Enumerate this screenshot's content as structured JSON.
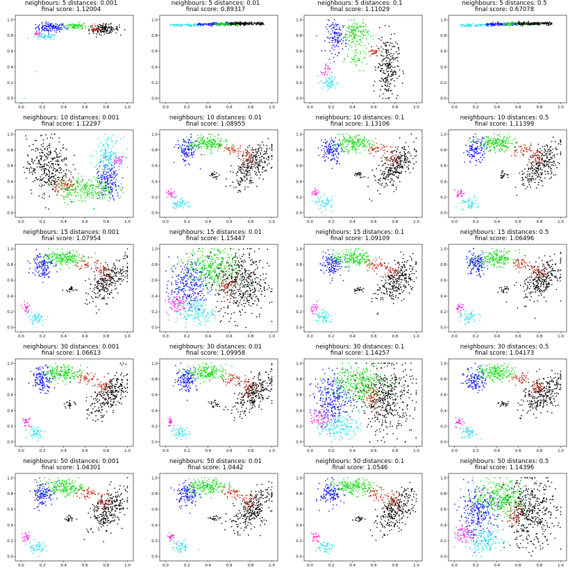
{
  "figure": {
    "title_template_neighbours": "neighbours:",
    "title_template_distances": "distances:",
    "title_template_score": "final score:"
  },
  "colors": {
    "blue": "#1a1aff",
    "green": "#22dd22",
    "black": "#111111",
    "cyan": "#33e0f0",
    "magenta": "#ff33dd",
    "red": "#cc3322",
    "gray": "#888888",
    "yellow": "#dddd22"
  },
  "chart_data": [
    {
      "type": "scatter",
      "title": "neighbours: 5 distances: 0.001",
      "subtitle": "final score: 1.12004",
      "neighbours": 5,
      "distances": 0.001,
      "score": 1.12004,
      "xlim": [
        0,
        1
      ],
      "ylim": [
        0,
        1
      ],
      "xticks": [
        "0.0",
        "0.2",
        "0.4",
        "0.6",
        "0.8",
        "1.0"
      ],
      "yticks": [
        "0.0",
        "0.2",
        "0.4",
        "0.6",
        "0.8",
        "1.0"
      ],
      "layout": "flat-top"
    },
    {
      "type": "scatter",
      "title": "neighbours: 5 distances: 0.01",
      "subtitle": "final score: 0.89317",
      "neighbours": 5,
      "distances": 0.01,
      "score": 0.89317,
      "xlim": [
        0,
        1
      ],
      "ylim": [
        0,
        1
      ],
      "xticks": [
        "0.0",
        "0.2",
        "0.4",
        "0.6",
        "0.8",
        "1.0"
      ],
      "yticks": [
        "0.0",
        "0.2",
        "0.4",
        "0.6",
        "0.8",
        "1.0"
      ],
      "layout": "line"
    },
    {
      "type": "scatter",
      "title": "neighbours: 5 distances: 0.1",
      "subtitle": "final score: 1.11029",
      "neighbours": 5,
      "distances": 0.1,
      "score": 1.11029,
      "xlim": [
        0,
        1
      ],
      "ylim": [
        0,
        1
      ],
      "xticks": [
        "0.0",
        "0.2",
        "0.4",
        "0.6",
        "0.8",
        "1.0"
      ],
      "yticks": [
        "0.0",
        "0.2",
        "0.4",
        "0.6",
        "0.8",
        "1.0"
      ],
      "layout": "scattered"
    },
    {
      "type": "scatter",
      "title": "neighbours: 5 distances: 0.5",
      "subtitle": "final score: 0.67078",
      "neighbours": 5,
      "distances": 0.5,
      "score": 0.67078,
      "xlim": [
        0,
        1
      ],
      "ylim": [
        0,
        1
      ],
      "xticks": [
        "0.0",
        "0.2",
        "0.4",
        "0.6",
        "0.8",
        "1.0"
      ],
      "yticks": [
        "0.0",
        "0.2",
        "0.4",
        "0.6",
        "0.8",
        "1.0"
      ],
      "layout": "line"
    },
    {
      "type": "scatter",
      "title": "neighbours: 10 distances: 0.001",
      "subtitle": "final score: 1.12297",
      "neighbours": 10,
      "distances": 0.001,
      "score": 1.12297,
      "xlim": [
        0,
        1
      ],
      "ylim": [
        0,
        1
      ],
      "xticks": [
        "0.0",
        "0.2",
        "0.4",
        "0.6",
        "0.8",
        "1.0"
      ],
      "yticks": [
        "0.0",
        "0.2",
        "0.4",
        "0.6",
        "0.8",
        "1.0"
      ],
      "layout": "ring"
    },
    {
      "type": "scatter",
      "title": "neighbours: 10 distances: 0.01",
      "subtitle": "final score: 1.08955",
      "neighbours": 10,
      "distances": 0.01,
      "score": 1.08955,
      "xlim": [
        0,
        1
      ],
      "ylim": [
        0,
        1
      ],
      "xticks": [
        "0.0",
        "0.2",
        "0.4",
        "0.6",
        "0.8",
        "1.0"
      ],
      "yticks": [
        "0.0",
        "0.2",
        "0.4",
        "0.6",
        "0.8",
        "1.0"
      ],
      "layout": "arc"
    },
    {
      "type": "scatter",
      "title": "neighbours: 10 distances: 0.1",
      "subtitle": "final score: 1.13106",
      "neighbours": 10,
      "distances": 0.1,
      "score": 1.13106,
      "xlim": [
        0,
        1
      ],
      "ylim": [
        0,
        1
      ],
      "xticks": [
        "0.0",
        "0.2",
        "0.4",
        "0.6",
        "0.8",
        "1.0"
      ],
      "yticks": [
        "0.0",
        "0.2",
        "0.4",
        "0.6",
        "0.8",
        "1.0"
      ],
      "layout": "arc"
    },
    {
      "type": "scatter",
      "title": "neighbours: 10 distances: 0.5",
      "subtitle": "final score: 1.11399",
      "neighbours": 10,
      "distances": 0.5,
      "score": 1.11399,
      "xlim": [
        0,
        1
      ],
      "ylim": [
        0,
        1
      ],
      "xticks": [
        "0.0",
        "0.2",
        "0.4",
        "0.6",
        "0.8",
        "1.0"
      ],
      "yticks": [
        "0.0",
        "0.2",
        "0.4",
        "0.6",
        "0.8",
        "1.0"
      ],
      "layout": "arc"
    },
    {
      "type": "scatter",
      "title": "neighbours: 15 distances: 0.001",
      "subtitle": "final score: 1.07954",
      "neighbours": 15,
      "distances": 0.001,
      "score": 1.07954,
      "xlim": [
        0,
        1
      ],
      "ylim": [
        0,
        1
      ],
      "xticks": [
        "0.0",
        "0.2",
        "0.4",
        "0.6",
        "0.8",
        "1.0"
      ],
      "yticks": [
        "0.0",
        "0.2",
        "0.4",
        "0.6",
        "0.8",
        "1.0"
      ],
      "layout": "arc"
    },
    {
      "type": "scatter",
      "title": "neighbours: 15 distances: 0.01",
      "subtitle": "final score: 1.15447",
      "neighbours": 15,
      "distances": 0.01,
      "score": 1.15447,
      "xlim": [
        0,
        1
      ],
      "ylim": [
        0,
        1
      ],
      "xticks": [
        "0.0",
        "0.2",
        "0.4",
        "0.6",
        "0.8",
        "1.0"
      ],
      "yticks": [
        "0.0",
        "0.2",
        "0.4",
        "0.6",
        "0.8",
        "1.0"
      ],
      "layout": "blob"
    },
    {
      "type": "scatter",
      "title": "neighbours: 15 distances: 0.1",
      "subtitle": "final score: 1.09109",
      "neighbours": 15,
      "distances": 0.1,
      "score": 1.09109,
      "xlim": [
        0,
        1
      ],
      "ylim": [
        0,
        1
      ],
      "xticks": [
        "0.0",
        "0.2",
        "0.4",
        "0.6",
        "0.8",
        "1.0"
      ],
      "yticks": [
        "0.0",
        "0.2",
        "0.4",
        "0.6",
        "0.8",
        "1.0"
      ],
      "layout": "arc"
    },
    {
      "type": "scatter",
      "title": "neighbours: 15 distances: 0.5",
      "subtitle": "final score: 1.06496",
      "neighbours": 15,
      "distances": 0.5,
      "score": 1.06496,
      "xlim": [
        0,
        1
      ],
      "ylim": [
        0,
        1
      ],
      "xticks": [
        "0.0",
        "0.2",
        "0.4",
        "0.6",
        "0.8",
        "1.0"
      ],
      "yticks": [
        "0.0",
        "0.2",
        "0.4",
        "0.6",
        "0.8",
        "1.0"
      ],
      "layout": "arc"
    },
    {
      "type": "scatter",
      "title": "neighbours: 30 distances: 0.001",
      "subtitle": "final score: 1.06613",
      "neighbours": 30,
      "distances": 0.001,
      "score": 1.06613,
      "xlim": [
        0,
        1
      ],
      "ylim": [
        0,
        1
      ],
      "xticks": [
        "0.0",
        "0.2",
        "0.4",
        "0.6",
        "0.8",
        "1.0"
      ],
      "yticks": [
        "0.0",
        "0.2",
        "0.4",
        "0.6",
        "0.8",
        "1.0"
      ],
      "layout": "arc"
    },
    {
      "type": "scatter",
      "title": "neighbours: 30 distances: 0.01",
      "subtitle": "final score: 1.09958",
      "neighbours": 30,
      "distances": 0.01,
      "score": 1.09958,
      "xlim": [
        0,
        1
      ],
      "ylim": [
        0,
        1
      ],
      "xticks": [
        "0.0",
        "0.2",
        "0.4",
        "0.6",
        "0.8",
        "1.0"
      ],
      "yticks": [
        "0.0",
        "0.2",
        "0.4",
        "0.6",
        "0.8",
        "1.0"
      ],
      "layout": "arc"
    },
    {
      "type": "scatter",
      "title": "neighbours: 30 distances: 0.1",
      "subtitle": "final score: 1.14257",
      "neighbours": 30,
      "distances": 0.1,
      "score": 1.14257,
      "xlim": [
        0,
        1
      ],
      "ylim": [
        0,
        1
      ],
      "xticks": [
        "0.0",
        "0.2",
        "0.4",
        "0.6",
        "0.8",
        "1.0"
      ],
      "yticks": [
        "0.0",
        "0.2",
        "0.4",
        "0.6",
        "0.8",
        "1.0"
      ],
      "layout": "blob"
    },
    {
      "type": "scatter",
      "title": "neighbours: 30 distances: 0.5",
      "subtitle": "final score: 1.04173",
      "neighbours": 30,
      "distances": 0.5,
      "score": 1.04173,
      "xlim": [
        0,
        1
      ],
      "ylim": [
        0,
        1
      ],
      "xticks": [
        "0.0",
        "0.2",
        "0.4",
        "0.6",
        "0.8",
        "1.0"
      ],
      "yticks": [
        "0.0",
        "0.2",
        "0.4",
        "0.6",
        "0.8",
        "1.0"
      ],
      "layout": "arc"
    },
    {
      "type": "scatter",
      "title": "neighbours: 50 distances: 0.001",
      "subtitle": "final score: 1.04301",
      "neighbours": 50,
      "distances": 0.001,
      "score": 1.04301,
      "xlim": [
        0,
        1
      ],
      "ylim": [
        0,
        1
      ],
      "xticks": [
        "0.0",
        "0.2",
        "0.4",
        "0.6",
        "0.8",
        "1.0"
      ],
      "yticks": [
        "0.0",
        "0.2",
        "0.4",
        "0.6",
        "0.8",
        "1.0"
      ],
      "layout": "arc"
    },
    {
      "type": "scatter",
      "title": "neighbours: 50 distances: 0.01",
      "subtitle": "final score: 1.0442",
      "neighbours": 50,
      "distances": 0.01,
      "score": 1.0442,
      "xlim": [
        0,
        1
      ],
      "ylim": [
        0,
        1
      ],
      "xticks": [
        "0.0",
        "0.2",
        "0.4",
        "0.6",
        "0.8",
        "1.0"
      ],
      "yticks": [
        "0.0",
        "0.2",
        "0.4",
        "0.6",
        "0.8",
        "1.0"
      ],
      "layout": "arc"
    },
    {
      "type": "scatter",
      "title": "neighbours: 50 distances: 0.1",
      "subtitle": "final score: 1.0546",
      "neighbours": 50,
      "distances": 0.1,
      "score": 1.0546,
      "xlim": [
        0,
        1
      ],
      "ylim": [
        0,
        1
      ],
      "xticks": [
        "0.0",
        "0.2",
        "0.4",
        "0.6",
        "0.8",
        "1.0"
      ],
      "yticks": [
        "0.0",
        "0.2",
        "0.4",
        "0.6",
        "0.8",
        "1.0"
      ],
      "layout": "arc"
    },
    {
      "type": "scatter",
      "title": "neighbours: 50 distances: 0.5",
      "subtitle": "final score: 1.14396",
      "neighbours": 50,
      "distances": 0.5,
      "score": 1.14396,
      "xlim": [
        0,
        1
      ],
      "ylim": [
        0,
        1
      ],
      "xticks": [
        "0.0",
        "0.2",
        "0.4",
        "0.6",
        "0.8",
        "1.0"
      ],
      "yticks": [
        "0.0",
        "0.2",
        "0.4",
        "0.6",
        "0.8",
        "1.0"
      ],
      "layout": "blob"
    }
  ]
}
